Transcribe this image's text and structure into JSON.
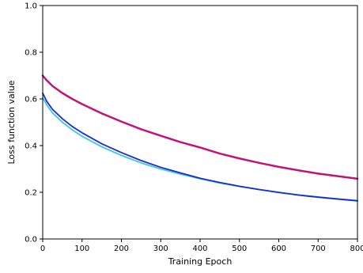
{
  "chart_data": {
    "type": "line",
    "title": "",
    "xlabel": "Training Epoch",
    "ylabel": "Loss function value",
    "xlim": [
      0,
      800
    ],
    "ylim": [
      0.0,
      1.0
    ],
    "x_ticks": [
      0,
      100,
      200,
      300,
      400,
      500,
      600,
      700,
      800
    ],
    "x_tick_labels": [
      "0",
      "100",
      "200",
      "300",
      "400",
      "500",
      "600",
      "700",
      "800"
    ],
    "y_ticks": [
      0.0,
      0.2,
      0.4,
      0.6,
      0.8,
      1.0
    ],
    "y_tick_labels": [
      "0.0",
      "0.2",
      "0.4",
      "0.6",
      "0.8",
      "1.0"
    ],
    "grid": false,
    "legend": null,
    "series": [
      {
        "color": "#c0147a",
        "x": [
          0,
          10,
          25,
          50,
          75,
          100,
          150,
          200,
          250,
          300,
          350,
          400,
          450,
          500,
          550,
          600,
          650,
          700,
          750,
          800
        ],
        "values": [
          0.7,
          0.68,
          0.655,
          0.625,
          0.6,
          0.578,
          0.538,
          0.503,
          0.47,
          0.442,
          0.415,
          0.392,
          0.366,
          0.345,
          0.326,
          0.309,
          0.294,
          0.28,
          0.269,
          0.258
        ]
      },
      {
        "color": "#3cc8d8",
        "x": [
          0,
          10,
          25,
          50,
          75,
          100,
          150,
          200,
          250,
          300,
          350,
          400,
          450,
          500,
          550,
          600,
          650,
          700,
          750,
          800
        ],
        "values": [
          0.605,
          0.575,
          0.54,
          0.5,
          0.468,
          0.44,
          0.395,
          0.358,
          0.326,
          0.3,
          0.278,
          0.258,
          0.24,
          0.225,
          0.212,
          0.2,
          0.189,
          0.18,
          0.172,
          0.165
        ]
      },
      {
        "color": "#1c2bd0",
        "x": [
          0,
          10,
          25,
          50,
          75,
          100,
          150,
          200,
          250,
          300,
          350,
          400,
          450,
          500,
          550,
          600,
          650,
          700,
          750,
          800
        ],
        "values": [
          0.625,
          0.59,
          0.555,
          0.515,
          0.482,
          0.455,
          0.408,
          0.37,
          0.336,
          0.307,
          0.283,
          0.26,
          0.242,
          0.226,
          0.212,
          0.199,
          0.188,
          0.179,
          0.171,
          0.163
        ]
      }
    ]
  }
}
